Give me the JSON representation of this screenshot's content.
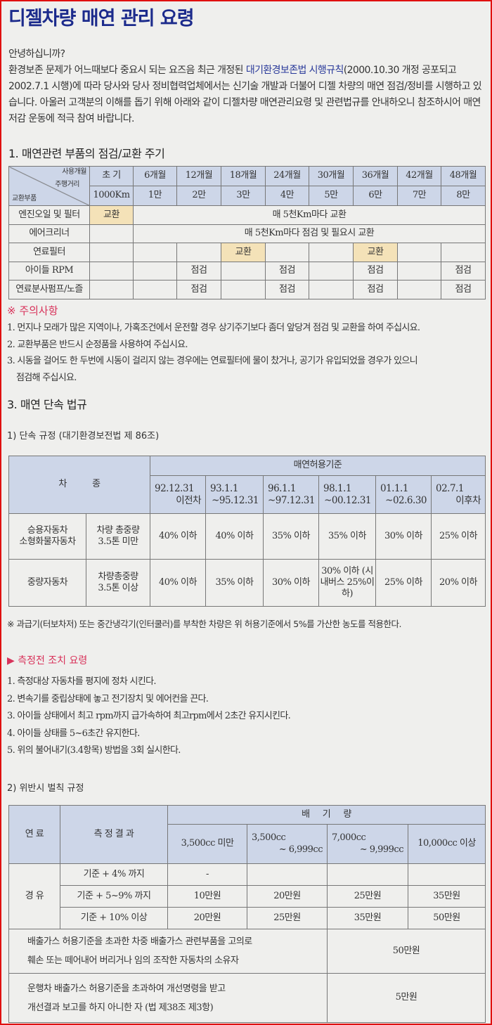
{
  "title": "디젤차량 매연 관리 요령",
  "intro": {
    "greeting": "안녕하십니까?",
    "p1": "환경보존 문제가 어느때보다 중요시 되는 요즈음  최근 개정된 ",
    "link": "대기환경보존법 시행규칙",
    "p2": "(2000.10.30 개정 공포되고 2002.7.1 시행)에 따라 당사와 당사 정비협력업체에서는 신기술 개발과 더불어 디젤 차량의 매연 점검/정비를 시행하고 있습니다. 아울러 고객분의 이해를 돕기 위해 아래와 같이 디젤차량 매연관리요령 및 관련법규를 안내하오니 참조하시어 매연저감 운동에 적극 참여 바랍니다."
  },
  "section1": {
    "heading": "1. 매연관련 부품의 점검/교환 주기",
    "corner": {
      "top": "사용개월",
      "mid": "주행거리",
      "bottom": "교환부품"
    },
    "months": [
      "초 기",
      "6개월",
      "12개월",
      "18개월",
      "24개월",
      "30개월",
      "36개월",
      "42개월",
      "48개월"
    ],
    "distances": [
      "1000Km",
      "1만",
      "2만",
      "3만",
      "4만",
      "5만",
      "6만",
      "7만",
      "8만"
    ],
    "rows": [
      {
        "part": "엔진오일 및 필터",
        "first": "교환",
        "span": "매 5천Km마다 교환"
      },
      {
        "part": "에어크리너",
        "first": "",
        "span": "매 5천Km마다 점검 및 필요시 교환"
      },
      {
        "part": "연료필터",
        "cells": [
          "",
          "",
          "",
          "교환",
          "",
          "",
          "교환",
          "",
          ""
        ]
      },
      {
        "part": "아이들 RPM",
        "cells": [
          "",
          "",
          "점검",
          "",
          "점검",
          "",
          "점검",
          "",
          "점검"
        ]
      },
      {
        "part": "연료분사펌프/노즐",
        "cells": [
          "",
          "",
          "점검",
          "",
          "점검",
          "",
          "점검",
          "",
          "점검"
        ]
      }
    ],
    "caution_title": "※ 주의사항",
    "cautions": [
      "1. 먼지나 모래가 많은 지역이나, 가혹조건에서 운전할 경우 상기주기보다 좀더 앞당겨 점검 및 교환을 하여 주십시요.",
      "2. 교환부품은 반드시 순정품을 사용하여 주십시요.",
      "3. 시동을 걸어도 한 두번에 시동이 걸리지 않는 경우에는 연료필터에 물이 찼거나, 공기가 유입되었을 경우가 있으니",
      "점검해 주십시요."
    ]
  },
  "section3": {
    "heading": "3. 매연 단속 법규",
    "sub1": "1) 단속 규정 (대기환경보전법 제 86조)",
    "t2": {
      "vehicle": "차          종",
      "standard": "매연허용기준",
      "periods": [
        [
          "92.12.31",
          "이전차"
        ],
        [
          "93.1.1",
          "~95.12.31"
        ],
        [
          "96.1.1",
          "~97.12.31"
        ],
        [
          "98.1.1",
          "~00.12.31"
        ],
        [
          "01.1.1",
          "~02.6.30"
        ],
        [
          "02.7.1",
          "이후차"
        ]
      ],
      "rows": [
        {
          "type": [
            "승용자동차",
            "소형화물자동차"
          ],
          "weight": [
            "차량 총중량",
            "3.5톤 미만"
          ],
          "values": [
            "40% 이하",
            "40% 이하",
            "35% 이하",
            "35% 이하",
            "30% 이하",
            "25% 이하"
          ]
        },
        {
          "type": [
            "중량자동차"
          ],
          "weight": [
            "차량총중량",
            "3.5톤 이상"
          ],
          "values": [
            "40% 이하",
            "35% 이하",
            "30% 이하",
            "30% 이하 (시내버스 25%이하)",
            "25% 이하",
            "20% 이하"
          ]
        }
      ]
    },
    "footnote": "※ 과급기(터보차저) 또는 중간냉각기(인터쿨러)를 부착한 차량은 위 허용기준에서 5%를 가산한 농도를 적용한다.",
    "prep_title": "▶ 측정전 조치 요령",
    "prep": [
      "1. 측정대상 자동차를 평지에 정차 시킨다.",
      "2. 변속기를 중립상태에 놓고 전기장치 및 에어컨을 끈다.",
      "3. 아이들 상태에서 최고 rpm까지 급가속하여 최고rpm에서  2초간 유지시킨다.",
      "4. 아이들 상태를 5~6초간 유지한다.",
      "5. 위의 불어내기(3.4항목) 방법을 3회 실시한다."
    ],
    "sub2": "2) 위반시 벌칙 규정",
    "t3": {
      "fuel_h": "연 료",
      "result_h": "측 정 결 과",
      "disp_h": "배     기     량",
      "disp": [
        [
          "3,500cc 미만"
        ],
        [
          "3,500cc",
          "~ 6,999cc"
        ],
        [
          "7,000cc",
          "~ 9,999cc"
        ],
        [
          "10,000cc 이상"
        ]
      ],
      "fuel": "경 유",
      "rows": [
        {
          "result": "기준 + 4% 까지",
          "values": [
            "-",
            "",
            "",
            ""
          ]
        },
        {
          "result": "기준 + 5~9% 까지",
          "values": [
            "10만원",
            "20만원",
            "25만원",
            "35만원"
          ]
        },
        {
          "result": "기준 + 10% 이상",
          "values": [
            "20만원",
            "25만원",
            "35만원",
            "50만원"
          ]
        }
      ],
      "extra": [
        {
          "text": [
            "배출가스 허용기준을 초과한 차중 배출가스 관련부품을 고의로",
            "훼손 또는 떼어내어 버리거나 임의 조작한 자동차의 소유자"
          ],
          "fine": "50만원"
        },
        {
          "text": [
            "운행차 배출가스 허용기준을 초과하여 개선명령을 받고",
            "개선결과 보고를 하지 아니한 자 (법 제38조 제3항)"
          ],
          "fine": "5만원"
        }
      ]
    }
  },
  "colors": {
    "title": "#1c2b8c",
    "accent": "#d8325a",
    "header_fill": "#cdd6e8",
    "highlight": "#f4e2b8",
    "border": "#e01010"
  }
}
